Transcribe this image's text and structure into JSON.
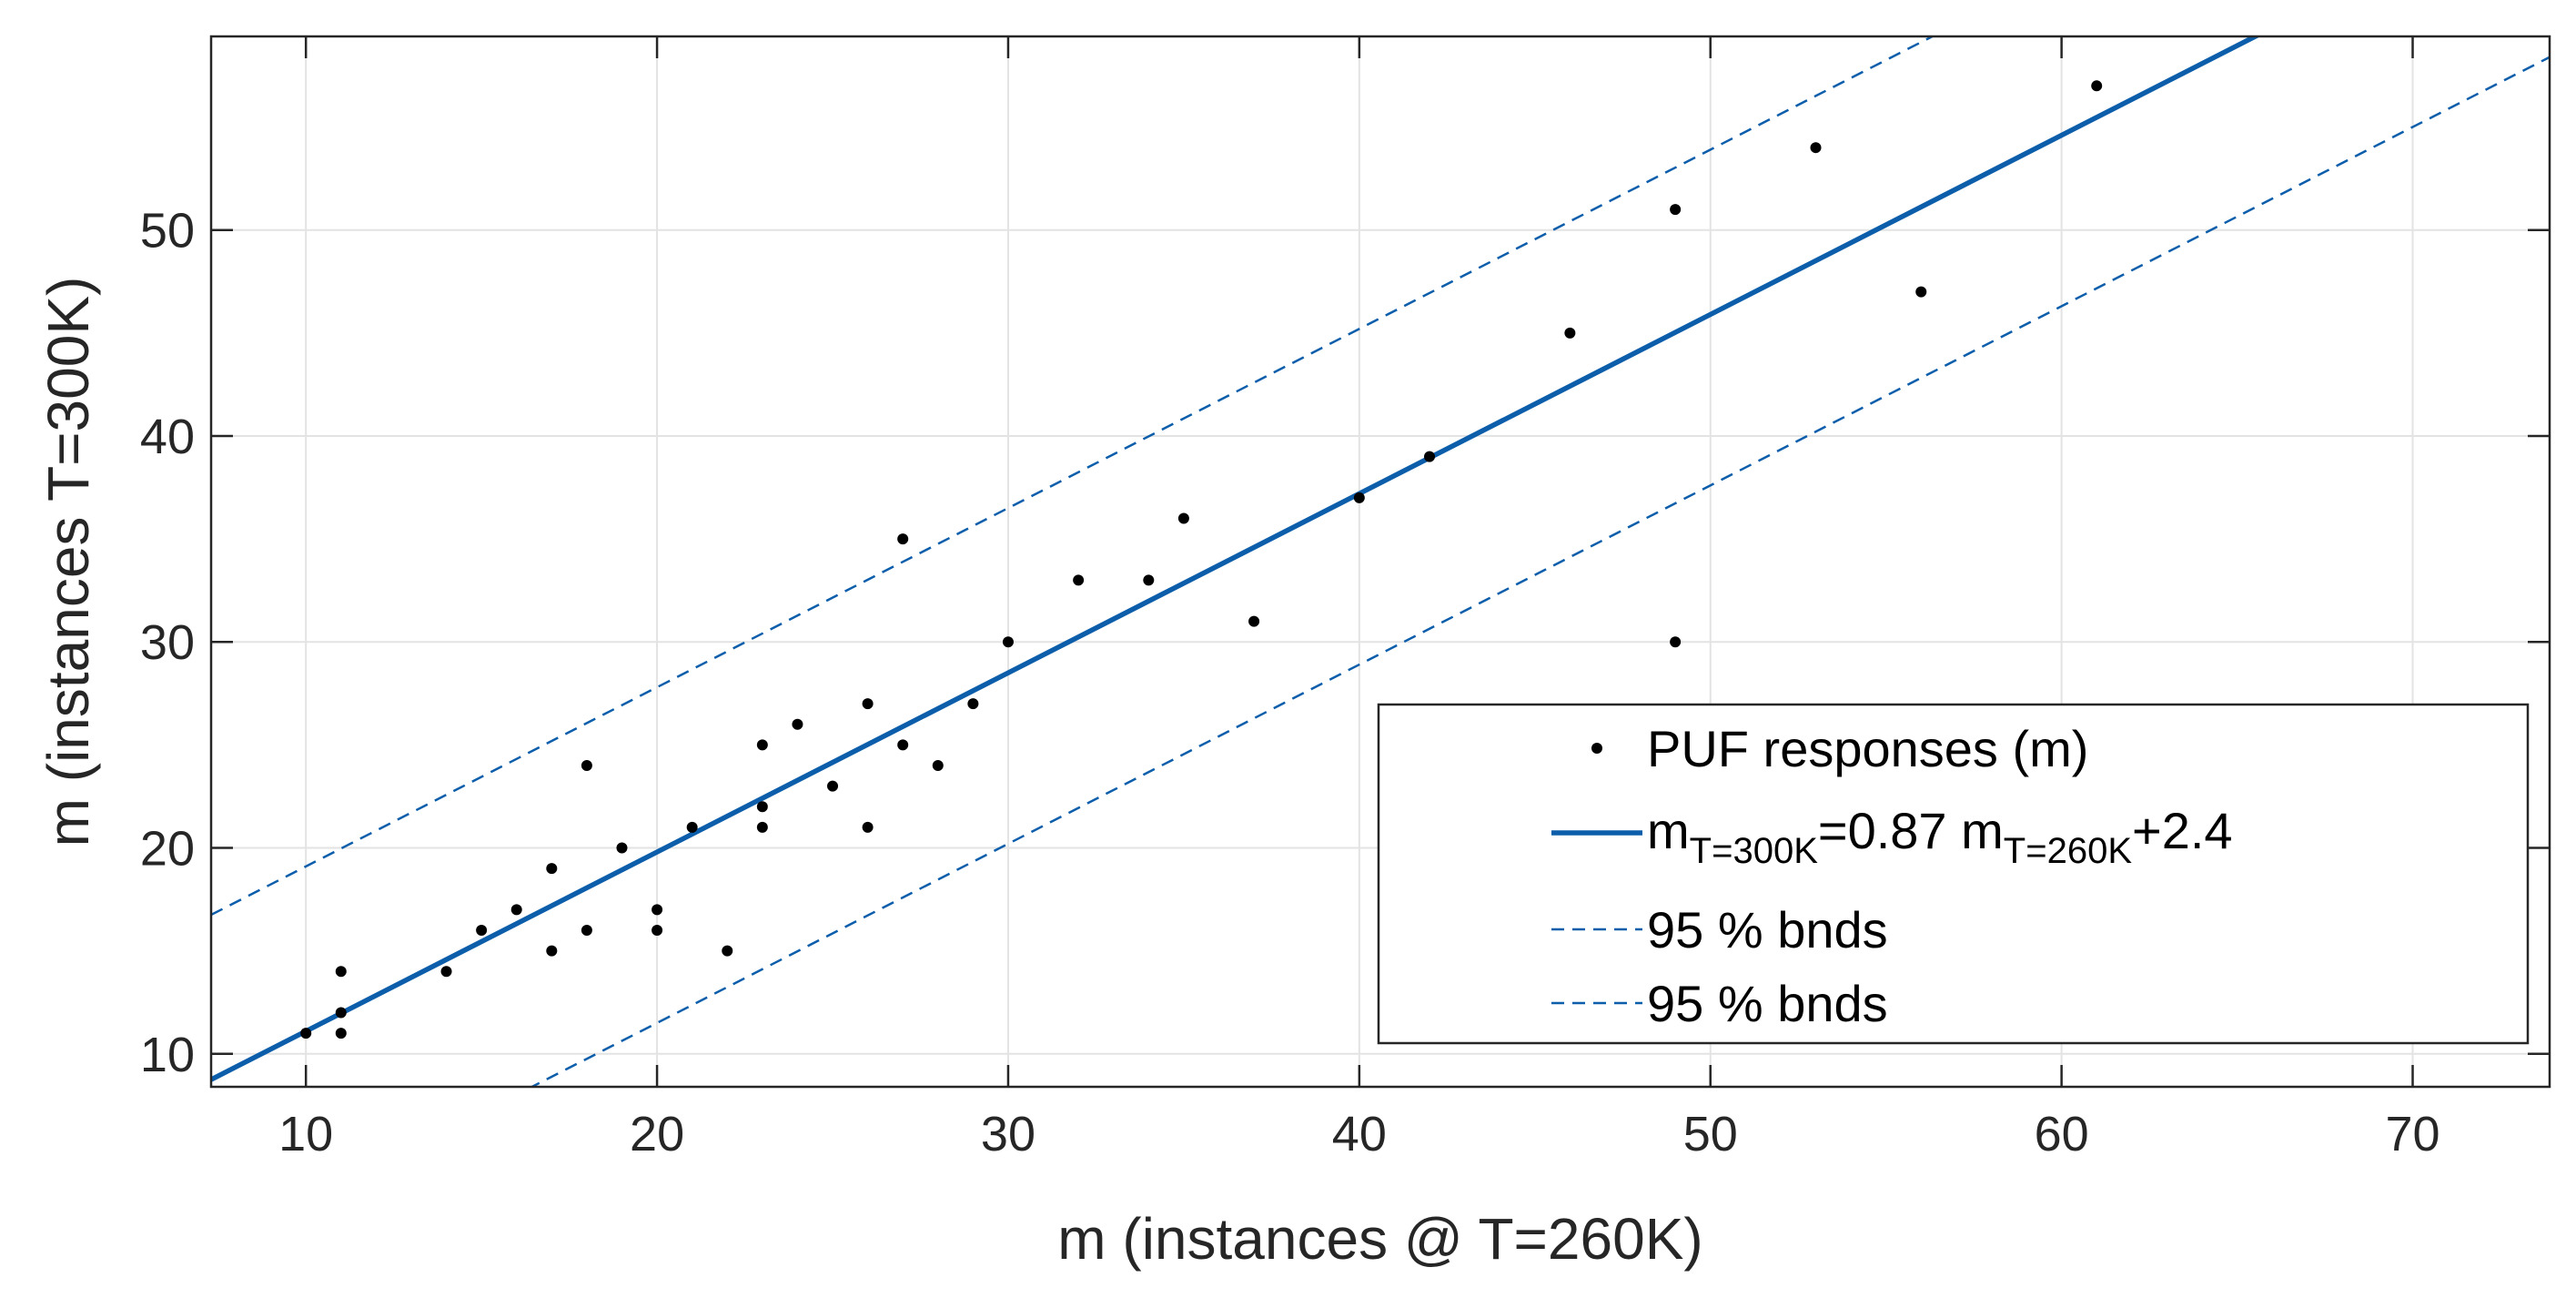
{
  "chart_data": {
    "type": "scatter",
    "xlabel": "m (instances @ T=260K)",
    "ylabel": "m (instances T=300K)",
    "xlim": [
      7.3,
      73.9
    ],
    "ylim": [
      8.4,
      59.4
    ],
    "xticks": [
      10,
      20,
      30,
      40,
      50,
      60,
      70
    ],
    "yticks": [
      10,
      20,
      30,
      40,
      50
    ],
    "grid": true,
    "legend_position": "bottom-right",
    "series": [
      {
        "name": "PUF responses (m)",
        "type": "scatter",
        "color": "#000000",
        "points": [
          [
            10,
            11
          ],
          [
            11,
            11
          ],
          [
            11,
            12
          ],
          [
            11,
            14
          ],
          [
            14,
            14
          ],
          [
            15,
            16
          ],
          [
            16,
            17
          ],
          [
            17,
            15
          ],
          [
            17,
            19
          ],
          [
            18,
            16
          ],
          [
            18,
            24
          ],
          [
            19,
            20
          ],
          [
            20,
            16
          ],
          [
            20,
            17
          ],
          [
            21,
            21
          ],
          [
            22,
            15
          ],
          [
            23,
            21
          ],
          [
            23,
            22
          ],
          [
            23,
            25
          ],
          [
            24,
            26
          ],
          [
            25,
            23
          ],
          [
            26,
            21
          ],
          [
            26,
            27
          ],
          [
            27,
            25
          ],
          [
            27,
            35
          ],
          [
            28,
            24
          ],
          [
            29,
            27
          ],
          [
            30,
            30
          ],
          [
            32,
            33
          ],
          [
            34,
            33
          ],
          [
            35,
            36
          ],
          [
            37,
            31
          ],
          [
            40,
            37
          ],
          [
            42,
            39
          ],
          [
            46,
            45
          ],
          [
            49,
            30
          ],
          [
            49,
            51
          ],
          [
            53,
            54
          ],
          [
            56,
            47
          ],
          [
            61,
            57
          ]
        ]
      },
      {
        "name": "fit",
        "type": "line",
        "color": "#0c5eab",
        "slope": 0.87,
        "intercept": 2.4
      },
      {
        "name": "95 % bnds",
        "type": "line",
        "style": "dashed",
        "color": "#0c5eab",
        "slope": 0.87,
        "intercept": 10.4
      },
      {
        "name": "95 % bnds",
        "type": "line",
        "style": "dashed",
        "color": "#0c5eab",
        "slope": 0.87,
        "intercept": -5.9
      }
    ],
    "legend": {
      "scatter_label": "PUF responses (m)",
      "fit_label_m1": "m",
      "fit_label_sub1": "T=300K",
      "fit_label_mid": "=0.87 m",
      "fit_label_sub2": "T=260K",
      "fit_label_end": "+2.4",
      "bound_label_1": "95 % bnds",
      "bound_label_2": "95 % bnds"
    }
  }
}
